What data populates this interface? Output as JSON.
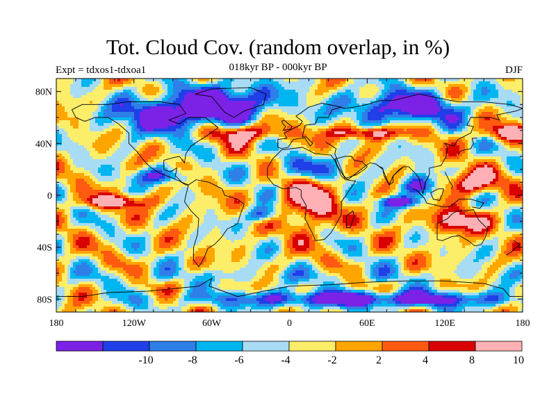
{
  "title": "Tot. Cloud Cov. (random overlap, in %)",
  "subtitle": "018kyr BP - 000kyr BP",
  "experiment": "Expt = tdxos1-tdxoa1",
  "season": "DJF",
  "map": {
    "projection": "cylindrical-equidistant",
    "lon_range": [
      -180,
      180
    ],
    "lat_range": [
      -90,
      90
    ],
    "x_ticks": [
      {
        "lon": -180,
        "label": "180"
      },
      {
        "lon": -120,
        "label": "120W"
      },
      {
        "lon": -60,
        "label": "60W"
      },
      {
        "lon": 0,
        "label": "0"
      },
      {
        "lon": 60,
        "label": "60E"
      },
      {
        "lon": 120,
        "label": "120E"
      },
      {
        "lon": 180,
        "label": "180"
      }
    ],
    "y_ticks": [
      {
        "lat": 80,
        "label": "80N"
      },
      {
        "lat": 40,
        "label": "40N"
      },
      {
        "lat": 0,
        "label": "0"
      },
      {
        "lat": -40,
        "label": "40S"
      },
      {
        "lat": -80,
        "label": "80S"
      }
    ]
  },
  "colorbar": {
    "colors": [
      "#7b22e6",
      "#1f3fe8",
      "#2f7fe8",
      "#00b6f0",
      "#a8dcf5",
      "#fdee6a",
      "#ffa500",
      "#ff5a10",
      "#d90000",
      "#ffb0b4"
    ],
    "labels": [
      {
        "boundary": 2,
        "text": "-10"
      },
      {
        "boundary": 3,
        "text": "-8"
      },
      {
        "boundary": 4,
        "text": "-6"
      },
      {
        "boundary": 5,
        "text": "-4"
      },
      {
        "boundary": 6,
        "text": "-2"
      },
      {
        "boundary": 7,
        "text": "2"
      },
      {
        "boundary": 8,
        "text": "4"
      },
      {
        "boundary": 9,
        "text": "8"
      },
      {
        "boundary": 10,
        "text": "10"
      }
    ]
  },
  "field": {
    "background_level": 5,
    "features": [
      {
        "name": "greenland-negative",
        "lon": -45,
        "lat": 72,
        "rlon": 35,
        "rlat": 14,
        "level": 0
      },
      {
        "name": "north-america-negative",
        "lon": -95,
        "lat": 62,
        "rlon": 40,
        "rlat": 14,
        "level": 0
      },
      {
        "name": "siberia-negative",
        "lon": 90,
        "lat": 68,
        "rlon": 45,
        "rlat": 12,
        "level": 0
      },
      {
        "name": "north-atlantic-positive",
        "lon": -35,
        "lat": 48,
        "rlon": 28,
        "rlat": 7,
        "level": 9
      },
      {
        "name": "north-pacific-positive",
        "lon": 175,
        "lat": 48,
        "rlon": 25,
        "rlat": 6,
        "level": 9
      },
      {
        "name": "eurasia-positive",
        "lon": 60,
        "lat": 48,
        "rlon": 30,
        "rlat": 5,
        "level": 9
      },
      {
        "name": "sahara-negative",
        "lon": 15,
        "lat": 20,
        "rlon": 30,
        "rlat": 10,
        "level": 2
      },
      {
        "name": "east-atlantic-positive",
        "lon": 15,
        "lat": -5,
        "rlon": 20,
        "rlat": 22,
        "level": 9
      },
      {
        "name": "indian-ocean-negative",
        "lon": 85,
        "lat": -5,
        "rlon": 15,
        "rlat": 4,
        "level": 0
      },
      {
        "name": "maritime-continent-negative",
        "lon": 100,
        "lat": 8,
        "rlon": 12,
        "rlat": 8,
        "level": 0
      },
      {
        "name": "west-pacific-positive",
        "lon": 140,
        "lat": 10,
        "rlon": 22,
        "rlat": 9,
        "level": 9
      },
      {
        "name": "australia-positive",
        "lon": 130,
        "lat": -20,
        "rlon": 20,
        "rlat": 9,
        "level": 9
      },
      {
        "name": "south-atlantic-negative",
        "lon": -20,
        "lat": -15,
        "rlon": 12,
        "rlat": 6,
        "level": 1
      },
      {
        "name": "south-pacific-positive",
        "lon": -135,
        "lat": -5,
        "rlon": 25,
        "rlat": 5,
        "level": 9
      },
      {
        "name": "southern-ocean-light",
        "lon": 0,
        "lat": -62,
        "rlon": 180,
        "rlat": 6,
        "level": 4
      },
      {
        "name": "antarctic-negative",
        "lon": 60,
        "lat": -80,
        "rlon": 120,
        "rlat": 6,
        "level": 0
      },
      {
        "name": "east-pacific-negative",
        "lon": -100,
        "lat": 15,
        "rlon": 25,
        "rlat": 6,
        "level": 2
      }
    ]
  }
}
